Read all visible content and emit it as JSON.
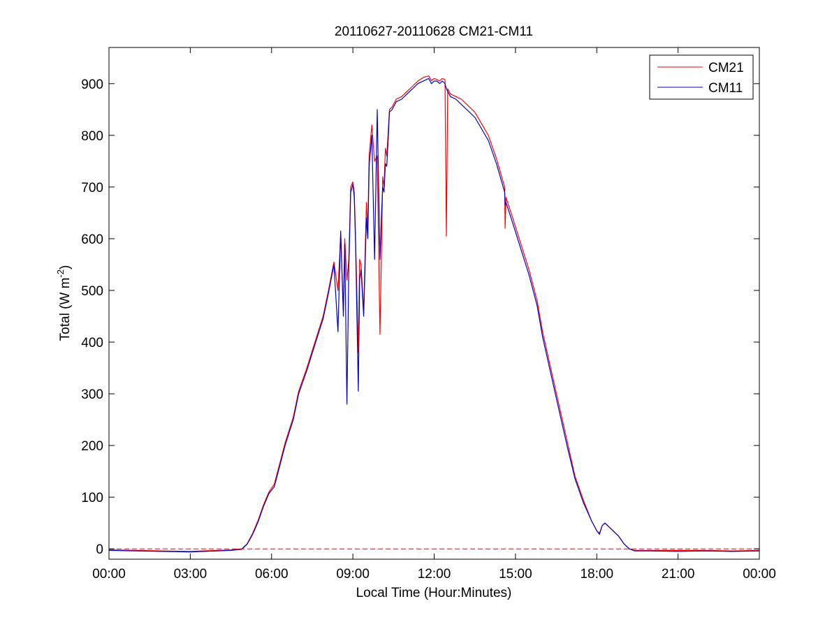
{
  "chart_data": {
    "type": "line",
    "title": "20110627-20110628 CM21-CM11",
    "xlabel": "Local Time (Hour:Minutes)",
    "ylabel": {
      "main": "Total (W m",
      "superscript": "-2",
      "close": ")"
    },
    "xlim": [
      0,
      24
    ],
    "ylim": [
      -20,
      970
    ],
    "x_ticks": [
      0,
      3,
      6,
      9,
      12,
      15,
      18,
      21,
      24
    ],
    "x_tick_labels": [
      "00:00",
      "03:00",
      "06:00",
      "09:00",
      "12:00",
      "15:00",
      "18:00",
      "21:00",
      "00:00"
    ],
    "y_ticks": [
      0,
      100,
      200,
      300,
      400,
      500,
      600,
      700,
      800,
      900
    ],
    "y_tick_labels": [
      "0",
      "100",
      "200",
      "300",
      "400",
      "500",
      "600",
      "700",
      "800",
      "900"
    ],
    "grid": false,
    "legend_position": "top-right",
    "reference_line": {
      "y": 0,
      "style": "dashed",
      "color": "#b22222"
    },
    "series": [
      {
        "name": "CM21",
        "color": "#ff0000",
        "x": [
          0,
          1,
          2,
          3,
          4,
          4.5,
          4.9,
          5.1,
          5.3,
          5.5,
          5.7,
          5.9,
          6.1,
          6.3,
          6.5,
          6.8,
          7.0,
          7.3,
          7.6,
          7.9,
          8.1,
          8.3,
          8.45,
          8.55,
          8.65,
          8.7,
          8.78,
          8.85,
          8.92,
          9.0,
          9.05,
          9.1,
          9.2,
          9.25,
          9.3,
          9.4,
          9.5,
          9.55,
          9.6,
          9.7,
          9.8,
          9.9,
          10.0,
          10.05,
          10.1,
          10.15,
          10.2,
          10.25,
          10.3,
          10.35,
          10.45,
          10.5,
          10.6,
          10.8,
          11.0,
          11.2,
          11.4,
          11.6,
          11.8,
          11.9,
          12.0,
          12.1,
          12.2,
          12.3,
          12.4,
          12.45,
          12.5,
          12.55,
          12.6,
          12.8,
          13.0,
          13.5,
          14.0,
          14.3,
          14.6,
          14.62,
          14.65,
          14.9,
          15.2,
          15.5,
          15.8,
          16.0,
          16.3,
          16.6,
          16.9,
          17.2,
          17.5,
          17.8,
          17.9,
          18.0,
          18.1,
          18.2,
          18.3,
          18.5,
          18.8,
          19.0,
          19.2,
          19.4,
          20,
          21,
          22,
          23,
          24
        ],
        "values": [
          -2,
          -3,
          -4,
          -5,
          -3,
          -2,
          0,
          10,
          30,
          55,
          85,
          110,
          125,
          165,
          205,
          255,
          305,
          350,
          400,
          450,
          500,
          555,
          500,
          610,
          460,
          600,
          520,
          560,
          700,
          710,
          690,
          600,
          380,
          560,
          550,
          460,
          670,
          620,
          760,
          820,
          750,
          760,
          415,
          560,
          720,
          700,
          775,
          760,
          805,
          850,
          855,
          860,
          870,
          875,
          885,
          895,
          905,
          912,
          915,
          906,
          910,
          908,
          905,
          910,
          908,
          605,
          890,
          885,
          880,
          875,
          870,
          845,
          800,
          755,
          700,
          620,
          680,
          640,
          590,
          540,
          480,
          420,
          350,
          280,
          210,
          140,
          95,
          55,
          45,
          35,
          30,
          45,
          50,
          40,
          25,
          10,
          0,
          -3,
          -3,
          -3,
          -3,
          -4,
          -3
        ]
      },
      {
        "name": "CM11",
        "color": "#0000cc",
        "x": [
          0,
          1,
          2,
          3,
          4,
          4.5,
          4.9,
          5.1,
          5.3,
          5.5,
          5.7,
          5.9,
          6.1,
          6.3,
          6.5,
          6.8,
          7.0,
          7.3,
          7.6,
          7.9,
          8.1,
          8.3,
          8.45,
          8.55,
          8.65,
          8.7,
          8.78,
          8.85,
          8.92,
          9.0,
          9.05,
          9.1,
          9.2,
          9.25,
          9.3,
          9.4,
          9.5,
          9.55,
          9.6,
          9.7,
          9.8,
          9.9,
          10.0,
          10.05,
          10.1,
          10.15,
          10.2,
          10.25,
          10.3,
          10.35,
          10.45,
          10.5,
          10.6,
          10.8,
          11.0,
          11.2,
          11.4,
          11.6,
          11.8,
          11.9,
          12.0,
          12.1,
          12.2,
          12.3,
          12.4,
          12.45,
          12.5,
          12.55,
          12.6,
          12.8,
          13.0,
          13.5,
          14.0,
          14.3,
          14.6,
          14.62,
          14.65,
          14.9,
          15.2,
          15.5,
          15.8,
          16.0,
          16.3,
          16.6,
          16.9,
          17.2,
          17.5,
          17.8,
          17.9,
          18.0,
          18.1,
          18.2,
          18.3,
          18.5,
          18.8,
          19.0,
          19.2,
          19.4,
          20,
          21,
          22,
          23,
          24
        ],
        "values": [
          -3,
          -4,
          -5,
          -6,
          -4,
          -3,
          -1,
          9,
          28,
          52,
          82,
          107,
          120,
          160,
          200,
          250,
          300,
          345,
          395,
          445,
          495,
          550,
          420,
          615,
          450,
          590,
          280,
          540,
          690,
          705,
          680,
          590,
          305,
          520,
          540,
          450,
          640,
          600,
          740,
          800,
          560,
          850,
          560,
          640,
          700,
          690,
          745,
          740,
          790,
          845,
          850,
          855,
          865,
          870,
          880,
          890,
          900,
          905,
          910,
          900,
          905,
          905,
          900,
          905,
          900,
          890,
          885,
          880,
          875,
          870,
          860,
          835,
          790,
          745,
          690,
          665,
          670,
          630,
          580,
          530,
          470,
          410,
          340,
          270,
          200,
          135,
          90,
          55,
          45,
          35,
          28,
          45,
          50,
          40,
          25,
          10,
          0,
          -4,
          -4,
          -5,
          -4,
          -5,
          -4
        ]
      }
    ]
  }
}
